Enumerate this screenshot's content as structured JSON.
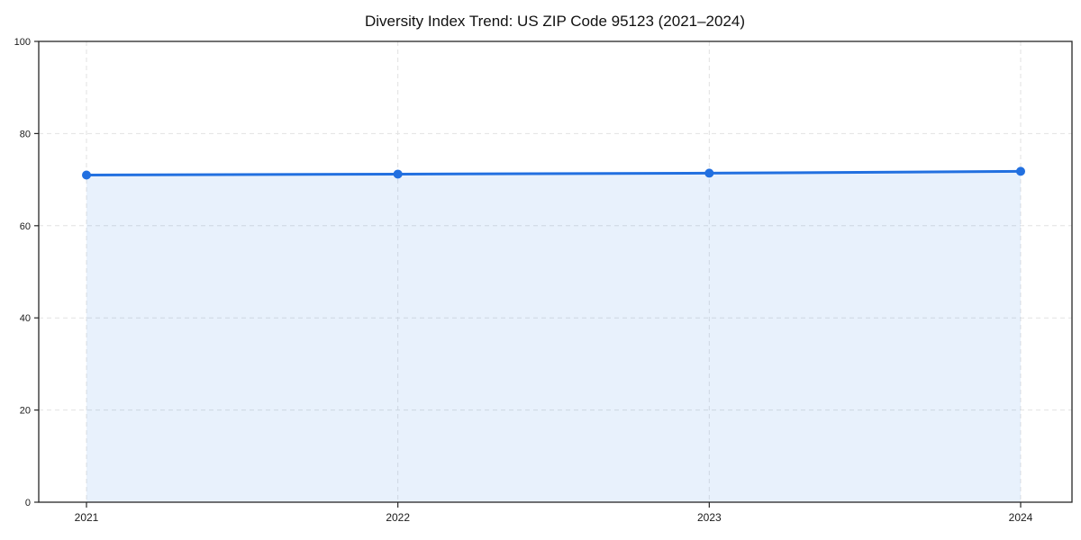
{
  "chart_data": {
    "type": "line",
    "title": "Diversity Index Trend: US ZIP Code 95123 (2021–2024)",
    "x": [
      "2021",
      "2022",
      "2023",
      "2024"
    ],
    "series": [
      {
        "name": "Diversity Index",
        "values": [
          71.0,
          71.2,
          71.4,
          71.8
        ],
        "line_color": "#2270e0",
        "fill_color": "#2271dd",
        "fill_opacity": 0.1,
        "marker": "circle"
      }
    ],
    "xlabel": "",
    "ylabel": "",
    "ylim": [
      0,
      100
    ],
    "yticks": [
      0,
      20,
      40,
      60,
      80,
      100
    ],
    "xticks": [
      "2021",
      "2022",
      "2023",
      "2024"
    ],
    "grid": true,
    "grid_style": "dashed",
    "grid_color": "#e2e2e2",
    "spine_color": "#262626",
    "legend": "none",
    "background": "#ffffff"
  }
}
